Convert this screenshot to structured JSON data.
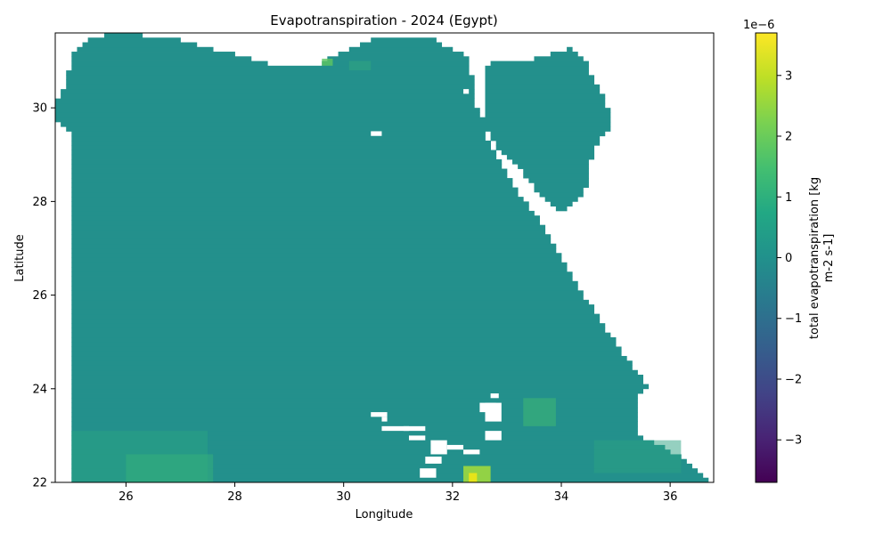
{
  "chart_data": {
    "type": "heatmap",
    "title": "Evapotranspiration - 2024 (Egypt)",
    "xlabel": "Longitude",
    "ylabel": "Latitude",
    "xlim": [
      24.7,
      36.8
    ],
    "ylim": [
      22.0,
      31.6
    ],
    "x_ticks": [
      "26",
      "28",
      "30",
      "32",
      "34",
      "36"
    ],
    "x_tick_values": [
      26,
      28,
      30,
      32,
      34,
      36
    ],
    "y_ticks": [
      "22",
      "24",
      "26",
      "28",
      "30"
    ],
    "y_tick_values": [
      22,
      24,
      26,
      28,
      30
    ],
    "colorscale": "viridis",
    "colorbar": {
      "label_line1": "total evapotranspiration [kg",
      "label_line2": "m-2 s-1]",
      "multiplier": "1e−6",
      "vmin": -3.7,
      "vmax": 3.7,
      "ticks": [
        "3",
        "2",
        "1",
        "0",
        "−1",
        "−2",
        "−3"
      ],
      "tick_values": [
        3,
        2,
        1,
        0,
        -1,
        -2,
        -3
      ]
    },
    "dominant_value": 0.25,
    "grid": false
  },
  "colors": {
    "base_cell": "#23908c",
    "land_mask_gap": "#ffffff"
  }
}
